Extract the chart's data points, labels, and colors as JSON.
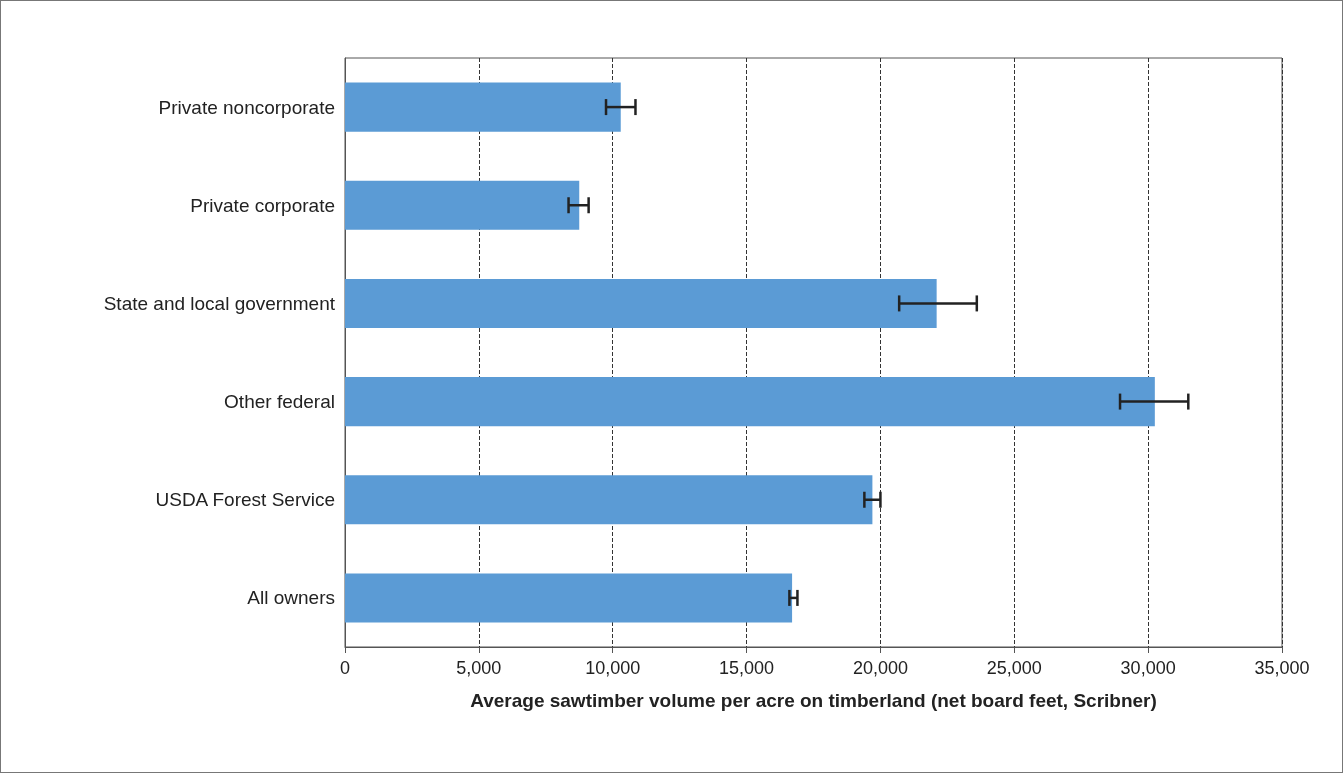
{
  "chart_data": {
    "type": "bar",
    "orientation": "horizontal",
    "xlabel": "Average sawtimber volume per acre on timberland (net board feet, Scribner)",
    "categories": [
      "Private noncorporate",
      "Private corporate",
      "State and local government",
      "Other federal",
      "USDA Forest Service",
      "All owners"
    ],
    "values": [
      10300,
      8750,
      22100,
      30250,
      19700,
      16700
    ],
    "errors": [
      [
        9750,
        10850
      ],
      [
        8350,
        9100
      ],
      [
        20700,
        23600
      ],
      [
        28950,
        31500
      ],
      [
        19400,
        20000
      ],
      [
        16600,
        16900
      ]
    ],
    "color": "#5b9bd5",
    "xlim": [
      0,
      35000
    ],
    "xticks": [
      0,
      {
        "value": 5000,
        "label": "5,000"
      },
      {
        "value": 10000,
        "label": "10,000"
      },
      {
        "value": 15000,
        "label": "15,000"
      },
      {
        "value": 20000,
        "label": "20,000"
      },
      {
        "value": 25000,
        "label": "25,000"
      },
      {
        "value": 30000,
        "label": "30,000"
      },
      {
        "value": 35000,
        "label": "35,000"
      }
    ],
    "grid": "x"
  }
}
